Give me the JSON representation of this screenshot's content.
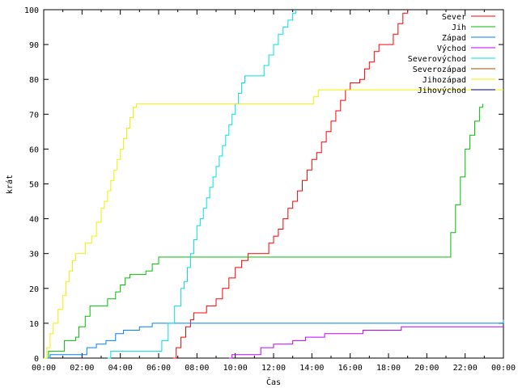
{
  "chart_data": {
    "type": "line",
    "title": "",
    "xlabel": "Čas",
    "ylabel": "krát",
    "xlim": [
      "00:00",
      "24:00"
    ],
    "ylim": [
      0,
      100
    ],
    "x_ticks": [
      "00:00",
      "02:00",
      "04:00",
      "06:00",
      "08:00",
      "10:00",
      "12:00",
      "14:00",
      "16:00",
      "18:00",
      "20:00",
      "22:00",
      "00:00"
    ],
    "y_ticks": [
      "0",
      "10",
      "20",
      "30",
      "40",
      "50",
      "60",
      "70",
      "80",
      "90",
      "100"
    ],
    "grid": false,
    "legend_position": "top-right",
    "series": [
      {
        "name": "Sever",
        "color": "#ff0000",
        "points": [
          [
            "06:45",
            0
          ],
          [
            "06:55",
            3
          ],
          [
            "07:10",
            6
          ],
          [
            "07:25",
            9
          ],
          [
            "07:40",
            11
          ],
          [
            "07:50",
            13
          ],
          [
            "08:20",
            13
          ],
          [
            "08:30",
            15
          ],
          [
            "09:00",
            17
          ],
          [
            "09:20",
            20
          ],
          [
            "09:40",
            23
          ],
          [
            "10:00",
            26
          ],
          [
            "10:20",
            28
          ],
          [
            "10:40",
            30
          ],
          [
            "11:30",
            30
          ],
          [
            "11:45",
            33
          ],
          [
            "12:00",
            35
          ],
          [
            "12:15",
            37
          ],
          [
            "12:30",
            40
          ],
          [
            "12:45",
            43
          ],
          [
            "13:00",
            45
          ],
          [
            "13:15",
            48
          ],
          [
            "13:30",
            51
          ],
          [
            "13:45",
            54
          ],
          [
            "14:00",
            57
          ],
          [
            "14:15",
            59
          ],
          [
            "14:30",
            62
          ],
          [
            "14:45",
            65
          ],
          [
            "15:00",
            68
          ],
          [
            "15:15",
            71
          ],
          [
            "15:30",
            74
          ],
          [
            "15:45",
            77
          ],
          [
            "16:00",
            79
          ],
          [
            "16:30",
            80
          ],
          [
            "16:45",
            83
          ],
          [
            "17:00",
            85
          ],
          [
            "17:15",
            88
          ],
          [
            "17:30",
            90
          ],
          [
            "18:00",
            90
          ],
          [
            "18:15",
            93
          ],
          [
            "18:30",
            96
          ],
          [
            "18:45",
            99
          ],
          [
            "19:00",
            100
          ]
        ]
      },
      {
        "name": "Jih",
        "color": "#00c000",
        "points": [
          [
            "00:00",
            0
          ],
          [
            "00:15",
            2
          ],
          [
            "00:45",
            2
          ],
          [
            "01:05",
            5
          ],
          [
            "01:40",
            6
          ],
          [
            "01:50",
            9
          ],
          [
            "02:10",
            12
          ],
          [
            "02:25",
            15
          ],
          [
            "03:00",
            15
          ],
          [
            "03:20",
            17
          ],
          [
            "03:45",
            19
          ],
          [
            "04:00",
            21
          ],
          [
            "04:15",
            23
          ],
          [
            "04:30",
            24
          ],
          [
            "05:20",
            25
          ],
          [
            "05:40",
            27
          ],
          [
            "06:00",
            29
          ],
          [
            "21:00",
            29
          ],
          [
            "21:15",
            36
          ],
          [
            "21:30",
            44
          ],
          [
            "21:45",
            52
          ],
          [
            "22:00",
            60
          ],
          [
            "22:15",
            64
          ],
          [
            "22:30",
            68
          ],
          [
            "22:45",
            72
          ],
          [
            "22:55",
            73
          ]
        ]
      },
      {
        "name": "Západ",
        "color": "#0080ff",
        "points": [
          [
            "00:00",
            0
          ],
          [
            "00:20",
            1
          ],
          [
            "02:00",
            1
          ],
          [
            "02:15",
            3
          ],
          [
            "02:45",
            4
          ],
          [
            "03:15",
            5
          ],
          [
            "03:45",
            7
          ],
          [
            "04:10",
            8
          ],
          [
            "04:40",
            8
          ],
          [
            "05:00",
            9
          ],
          [
            "05:40",
            10
          ],
          [
            "23:55",
            10
          ],
          [
            "24:00",
            11
          ]
        ]
      },
      {
        "name": "Východ",
        "color": "#c000ff",
        "points": [
          [
            "09:40",
            0
          ],
          [
            "09:50",
            1
          ],
          [
            "11:10",
            1
          ],
          [
            "11:20",
            3
          ],
          [
            "11:45",
            3
          ],
          [
            "12:00",
            4
          ],
          [
            "12:50",
            4
          ],
          [
            "13:00",
            5
          ],
          [
            "13:40",
            6
          ],
          [
            "14:40",
            7
          ],
          [
            "16:40",
            8
          ],
          [
            "18:40",
            9
          ],
          [
            "24:00",
            9
          ]
        ]
      },
      {
        "name": "Severovýchod",
        "color": "#00e0e0",
        "points": [
          [
            "03:20",
            0
          ],
          [
            "03:30",
            2
          ],
          [
            "06:00",
            2
          ],
          [
            "06:10",
            5
          ],
          [
            "06:30",
            10
          ],
          [
            "06:50",
            15
          ],
          [
            "07:10",
            20
          ],
          [
            "07:20",
            22
          ],
          [
            "07:30",
            26
          ],
          [
            "07:40",
            30
          ],
          [
            "07:50",
            34
          ],
          [
            "08:00",
            38
          ],
          [
            "08:10",
            40
          ],
          [
            "08:20",
            43
          ],
          [
            "08:30",
            46
          ],
          [
            "08:40",
            49
          ],
          [
            "08:50",
            52
          ],
          [
            "09:00",
            55
          ],
          [
            "09:10",
            58
          ],
          [
            "09:20",
            61
          ],
          [
            "09:30",
            64
          ],
          [
            "09:40",
            67
          ],
          [
            "09:50",
            70
          ],
          [
            "10:00",
            73
          ],
          [
            "10:10",
            76
          ],
          [
            "10:20",
            79
          ],
          [
            "10:30",
            81
          ],
          [
            "11:20",
            81
          ],
          [
            "11:30",
            84
          ],
          [
            "11:45",
            87
          ],
          [
            "12:00",
            90
          ],
          [
            "12:15",
            93
          ],
          [
            "12:30",
            95
          ],
          [
            "12:45",
            97
          ],
          [
            "13:00",
            99
          ],
          [
            "13:10",
            100
          ]
        ]
      },
      {
        "name": "Severozápad",
        "color": "#a05000",
        "points": []
      },
      {
        "name": "Jihozápad",
        "color": "#f0f000",
        "points": [
          [
            "00:00",
            0
          ],
          [
            "00:10",
            3
          ],
          [
            "00:20",
            7
          ],
          [
            "00:30",
            10
          ],
          [
            "00:45",
            14
          ],
          [
            "01:00",
            18
          ],
          [
            "01:10",
            22
          ],
          [
            "01:20",
            25
          ],
          [
            "01:30",
            28
          ],
          [
            "01:40",
            30
          ],
          [
            "02:00",
            30
          ],
          [
            "02:10",
            33
          ],
          [
            "02:30",
            35
          ],
          [
            "02:45",
            39
          ],
          [
            "03:00",
            43
          ],
          [
            "03:10",
            45
          ],
          [
            "03:20",
            48
          ],
          [
            "03:30",
            51
          ],
          [
            "03:40",
            54
          ],
          [
            "03:50",
            57
          ],
          [
            "04:00",
            60
          ],
          [
            "04:10",
            63
          ],
          [
            "04:20",
            66
          ],
          [
            "04:30",
            69
          ],
          [
            "04:40",
            72
          ],
          [
            "04:50",
            73
          ],
          [
            "13:55",
            73
          ],
          [
            "14:05",
            75
          ],
          [
            "14:20",
            77
          ],
          [
            "24:00",
            77
          ]
        ]
      },
      {
        "name": "Jihovýchod",
        "color": "#000080",
        "points": []
      }
    ]
  }
}
